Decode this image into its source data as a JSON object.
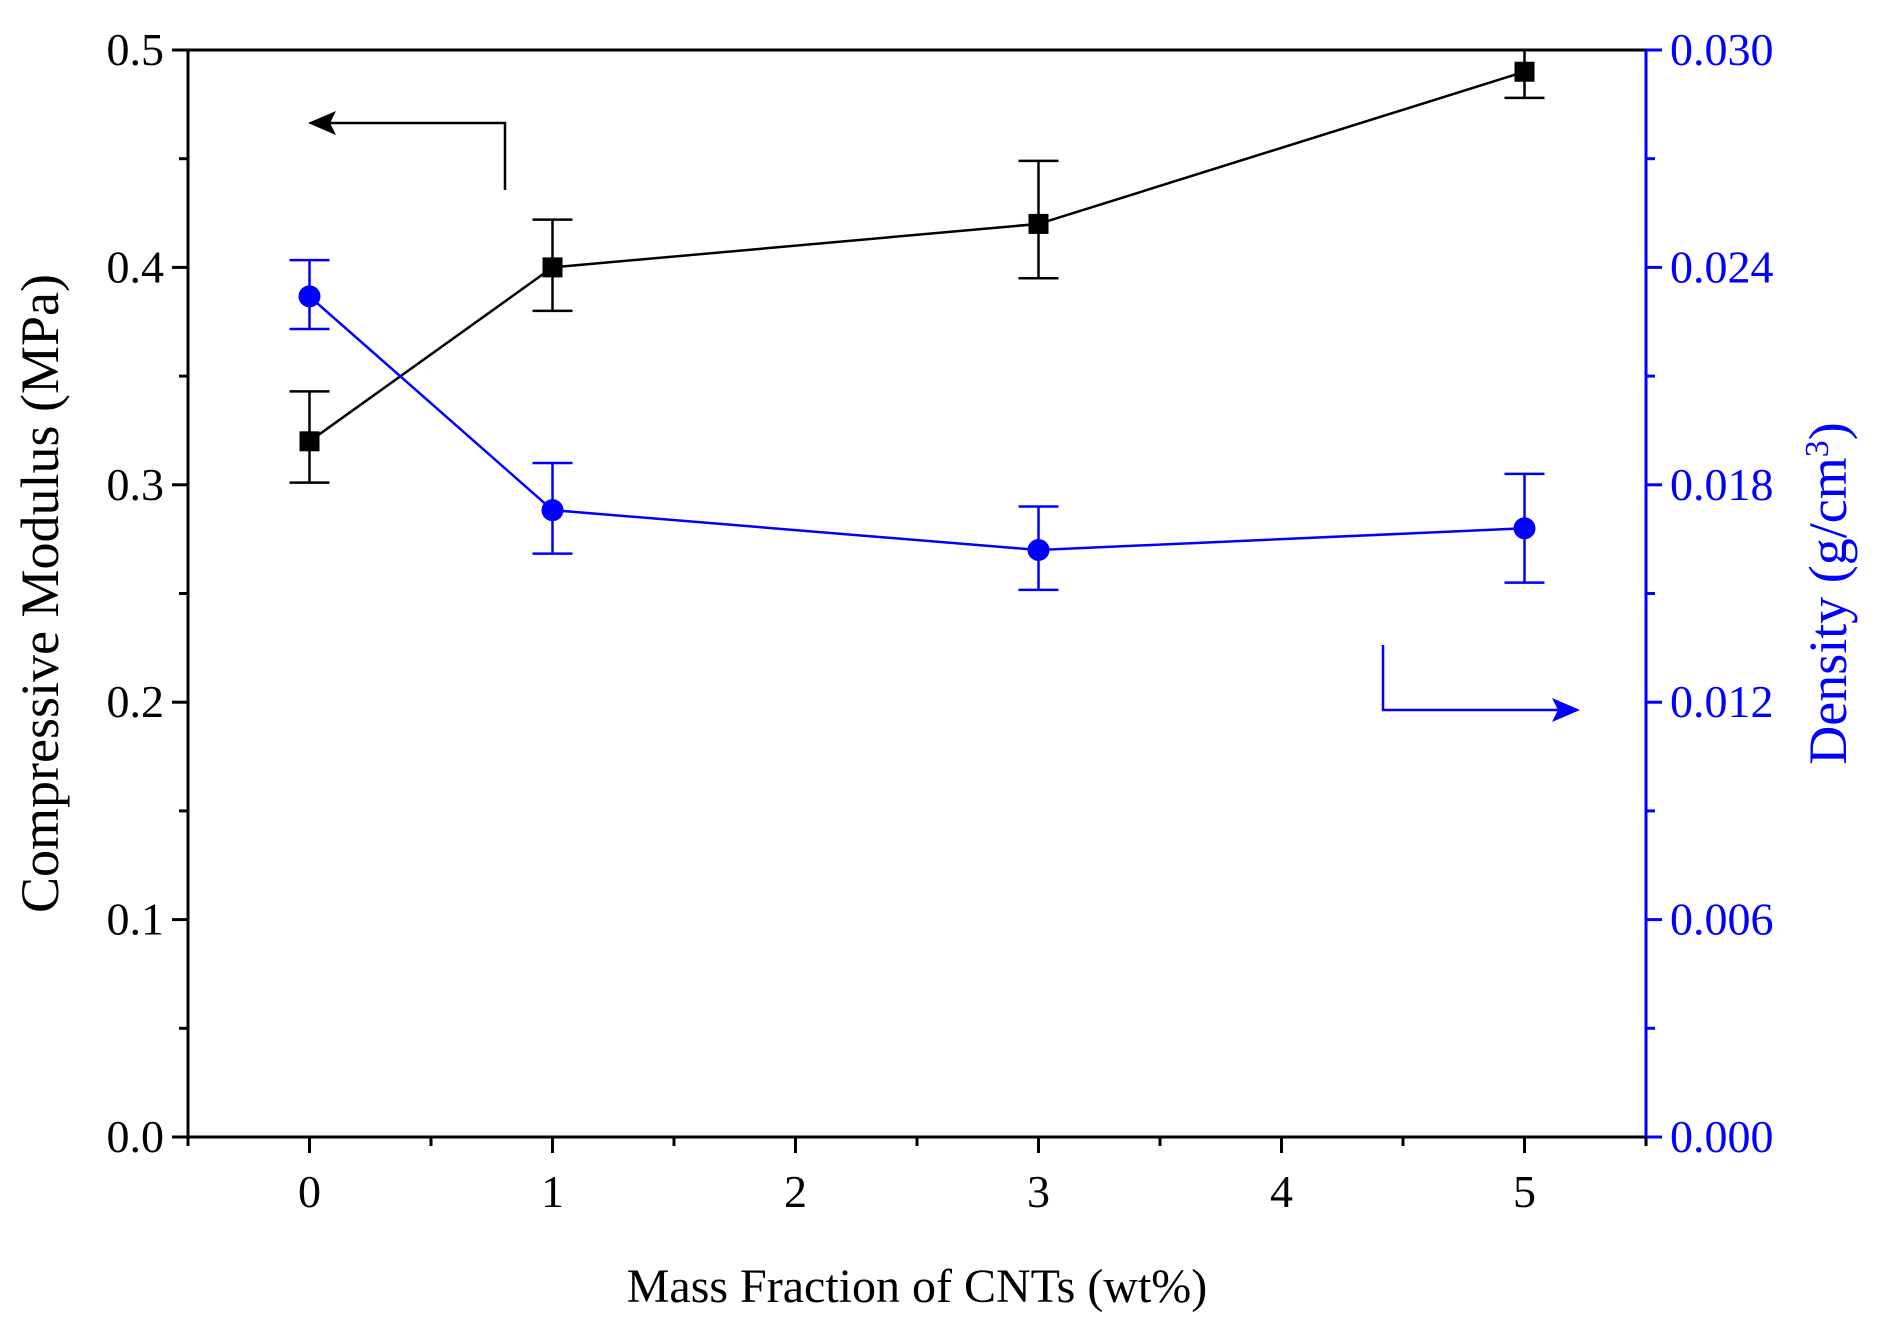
{
  "chart_data": {
    "type": "line",
    "title": "",
    "xlabel": "Mass Fraction of CNTs (wt%)",
    "xlim": [
      -0.5,
      5.5
    ],
    "xticks": [
      "0",
      "1",
      "2",
      "3",
      "4",
      "5"
    ],
    "grid": false,
    "left_axis": {
      "label": "Compressive Modulus (MPa)",
      "ylim": [
        0.0,
        0.5
      ],
      "ticks": [
        "0.0",
        "0.1",
        "0.2",
        "0.3",
        "0.4",
        "0.5"
      ],
      "color": "#000000"
    },
    "right_axis": {
      "label_main": "Density (g/cm",
      "label_sup": "3",
      "label_close": ")",
      "ylim": [
        0.0,
        0.03
      ],
      "ticks": [
        "0.000",
        "0.006",
        "0.012",
        "0.018",
        "0.024",
        "0.030"
      ],
      "color": "#0000ff"
    },
    "series": [
      {
        "name": "Compressive Modulus",
        "axis": "left",
        "marker": "square",
        "color": "#000000",
        "x": [
          0,
          1,
          3,
          5
        ],
        "y": [
          0.32,
          0.4,
          0.42,
          0.49
        ],
        "err_low": [
          0.301,
          0.38,
          0.395,
          0.478
        ],
        "err_high": [
          0.343,
          0.422,
          0.449,
          0.5
        ]
      },
      {
        "name": "Density",
        "axis": "right",
        "marker": "circle",
        "color": "#0000ff",
        "x": [
          0,
          1,
          3,
          5
        ],
        "y": [
          0.0232,
          0.0173,
          0.0162,
          0.0168
        ],
        "err_low": [
          0.0223,
          0.0161,
          0.0151,
          0.0153
        ],
        "err_high": [
          0.0242,
          0.0186,
          0.0174,
          0.0183
        ]
      }
    ],
    "annotations": [
      {
        "type": "arrow",
        "direction": "left",
        "points_to": "left-axis",
        "color": "#000000"
      },
      {
        "type": "arrow",
        "direction": "right",
        "points_to": "right-axis",
        "color": "#0000ff"
      }
    ]
  }
}
